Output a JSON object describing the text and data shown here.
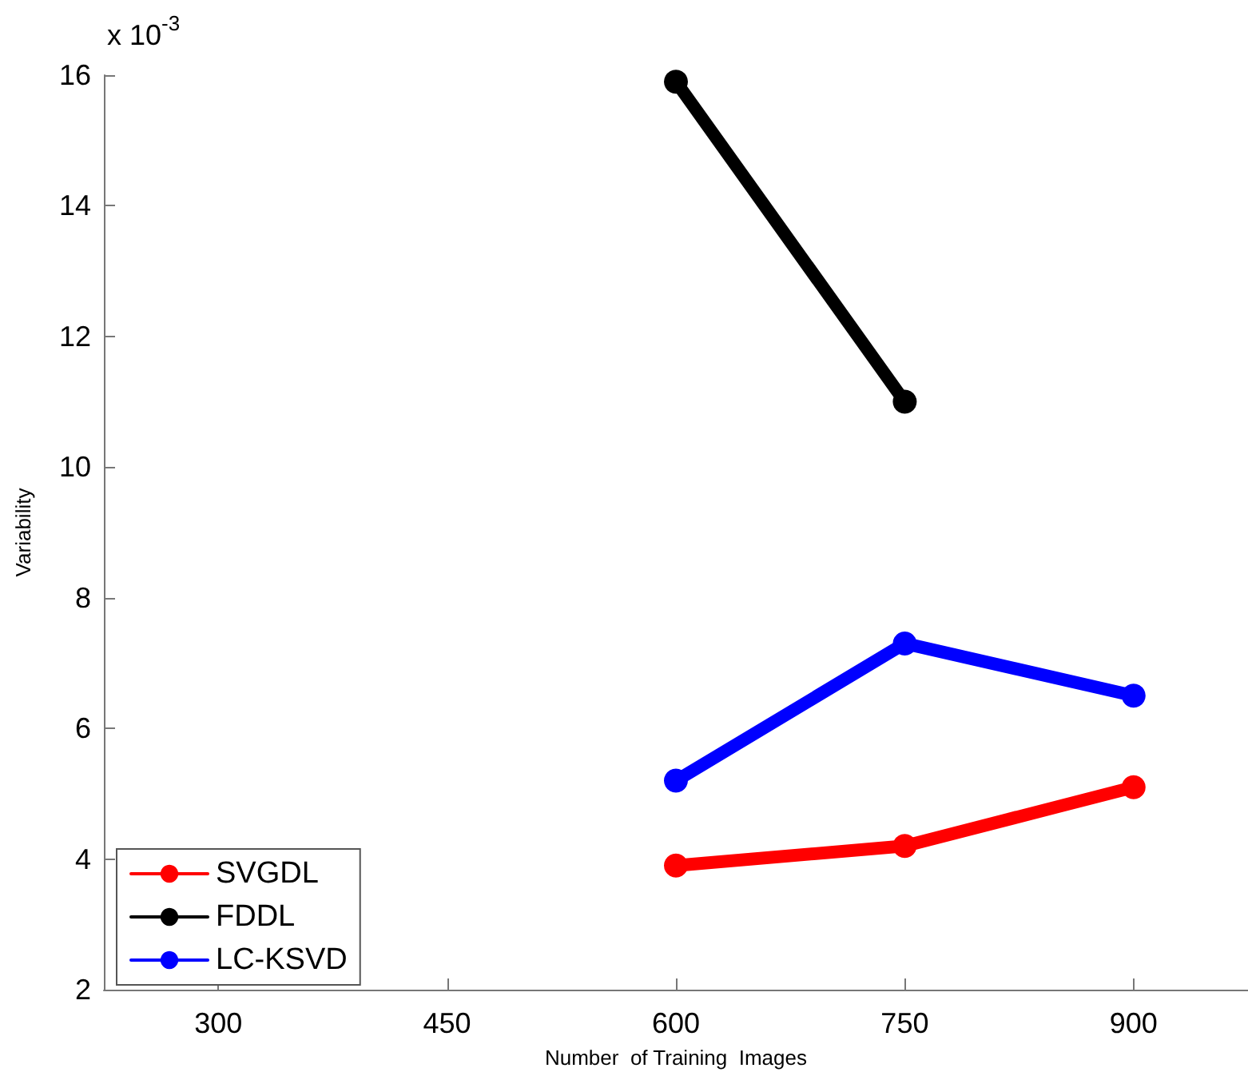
{
  "chart_data": {
    "type": "line",
    "xlabel": "Number  of Training  Images",
    "ylabel": "Variability",
    "annotations": [
      "x 10$^{-3}$"
    ],
    "x": [
      600,
      750,
      900
    ],
    "series": [
      {
        "name": "SVGDL",
        "color": "#ff0000",
        "values": [
          3.9,
          4.2,
          5.1
        ]
      },
      {
        "name": "FDDL",
        "color": "#000000",
        "values": [
          15.9,
          11.0,
          null
        ]
      },
      {
        "name": "LC-KSVD",
        "color": "#0000ff",
        "values": [
          5.2,
          7.3,
          6.5
        ]
      }
    ],
    "xlim": [
      225,
      975
    ],
    "xticks": [
      300,
      450,
      600,
      750,
      900
    ],
    "ylim": [
      2,
      16
    ],
    "yticks": [
      2,
      4,
      6,
      8,
      10,
      12,
      14,
      16
    ],
    "grid": false,
    "legend": "bottom left",
    "marker": "circle",
    "line_style": "solid"
  }
}
